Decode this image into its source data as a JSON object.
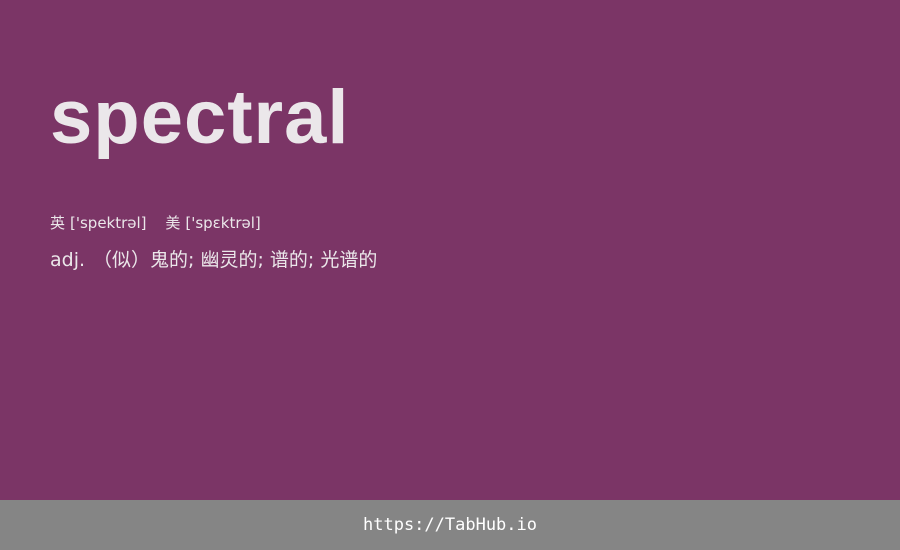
{
  "colors": {
    "background": "#7b3566",
    "text": "#ebe7ea",
    "footer_background": "#858585",
    "footer_text": "#ffffff"
  },
  "word": "spectral",
  "phonetics": {
    "uk_label": "英",
    "uk_value": "['spektrəl]",
    "us_label": "美",
    "us_value": "['spɛktrəl]"
  },
  "definition": {
    "part_of_speech": "adj.",
    "meaning": "（似）鬼的; 幽灵的; 谱的; 光谱的"
  },
  "footer": {
    "link_text": "https://TabHub.io"
  }
}
